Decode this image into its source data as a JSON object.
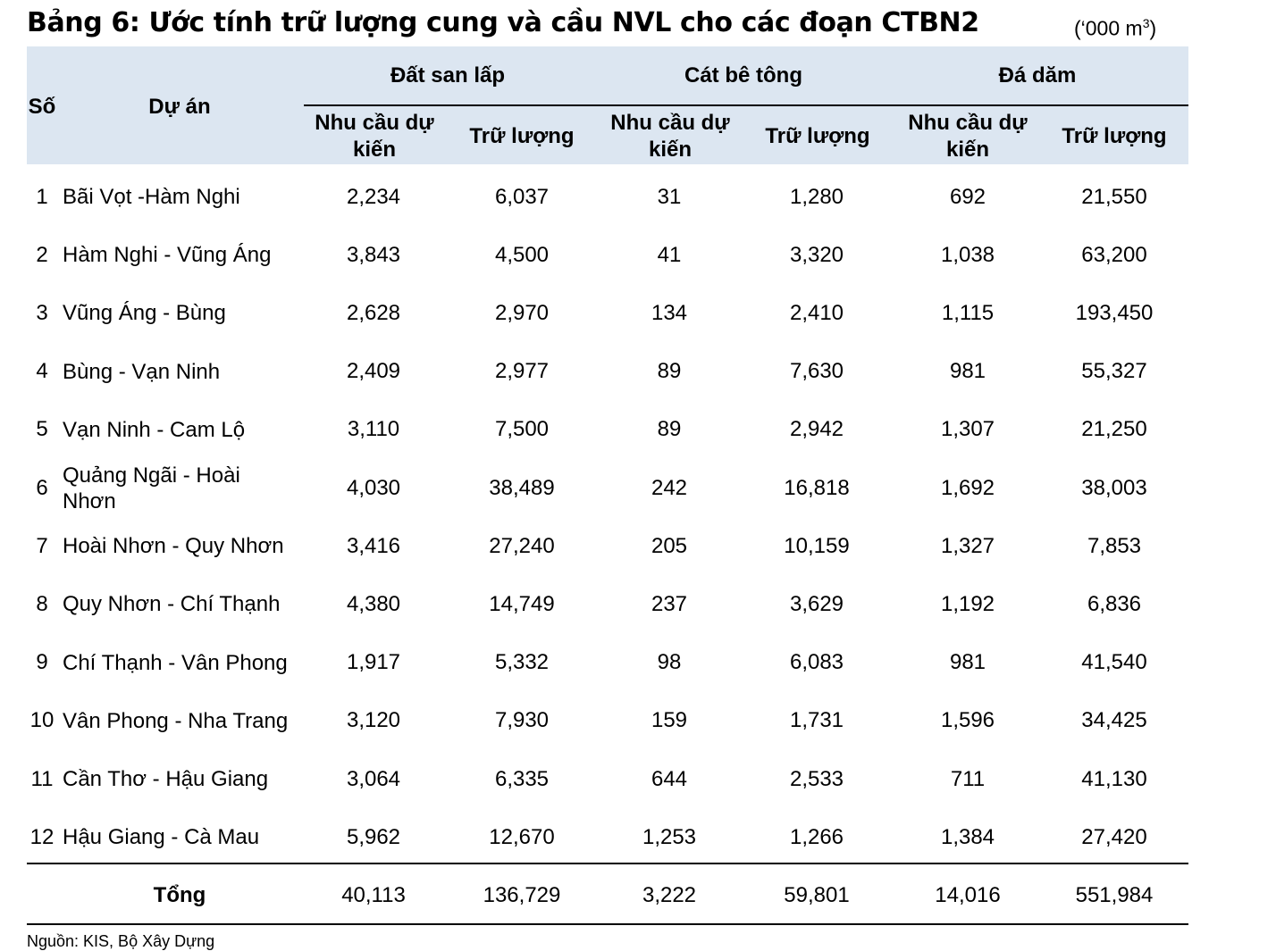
{
  "title": "Bảng 6: Ước tính trữ lượng cung và cầu NVL cho các đoạn CTBN2",
  "unit": "(‘000 m",
  "unit_sup": "3",
  "unit_close": ")",
  "headers": {
    "so": "Số",
    "du_an": "Dự án",
    "group1": "Đất san lấp",
    "group2": "Cát bê tông",
    "group3": "Đá dăm",
    "demand": "Nhu cầu dự kiến",
    "reserve": "Trữ lượng"
  },
  "rows": [
    {
      "no": "1",
      "name": "Bãi Vọt -Hàm Nghi",
      "v": [
        "2,234",
        "6,037",
        "31",
        "1,280",
        "692",
        "21,550"
      ]
    },
    {
      "no": "2",
      "name": "Hàm Nghi - Vũng Áng",
      "v": [
        "3,843",
        "4,500",
        "41",
        "3,320",
        "1,038",
        "63,200"
      ]
    },
    {
      "no": "3",
      "name": "Vũng Áng - Bùng",
      "v": [
        "2,628",
        "2,970",
        "134",
        "2,410",
        "1,115",
        "193,450"
      ]
    },
    {
      "no": "4",
      "name": "Bùng - Vạn Ninh",
      "v": [
        "2,409",
        "2,977",
        "89",
        "7,630",
        "981",
        "55,327"
      ]
    },
    {
      "no": "5",
      "name": "Vạn Ninh - Cam Lộ",
      "v": [
        "3,110",
        "7,500",
        "89",
        "2,942",
        "1,307",
        "21,250"
      ]
    },
    {
      "no": "6",
      "name": "Quảng Ngãi - Hoài Nhơn",
      "v": [
        "4,030",
        "38,489",
        "242",
        "16,818",
        "1,692",
        "38,003"
      ]
    },
    {
      "no": "7",
      "name": "Hoài Nhơn - Quy Nhơn",
      "v": [
        "3,416",
        "27,240",
        "205",
        "10,159",
        "1,327",
        "7,853"
      ]
    },
    {
      "no": "8",
      "name": "Quy Nhơn - Chí Thạnh",
      "v": [
        "4,380",
        "14,749",
        "237",
        "3,629",
        "1,192",
        "6,836"
      ]
    },
    {
      "no": "9",
      "name": "Chí Thạnh - Vân Phong",
      "v": [
        "1,917",
        "5,332",
        "98",
        "6,083",
        "981",
        "41,540"
      ]
    },
    {
      "no": "10",
      "name": "Vân Phong - Nha Trang",
      "v": [
        "3,120",
        "7,930",
        "159",
        "1,731",
        "1,596",
        "34,425"
      ]
    },
    {
      "no": "11",
      "name": "Cần Thơ - Hậu Giang",
      "v": [
        "3,064",
        "6,335",
        "644",
        "2,533",
        "711",
        "41,130"
      ]
    },
    {
      "no": "12",
      "name": "Hậu Giang - Cà Mau",
      "v": [
        "5,962",
        "12,670",
        "1,253",
        "1,266",
        "1,384",
        "27,420"
      ]
    }
  ],
  "total": {
    "label": "Tổng",
    "v": [
      "40,113",
      "136,729",
      "3,222",
      "59,801",
      "14,016",
      "551,984"
    ]
  },
  "source": "Nguồn: KIS, Bộ Xây Dựng"
}
